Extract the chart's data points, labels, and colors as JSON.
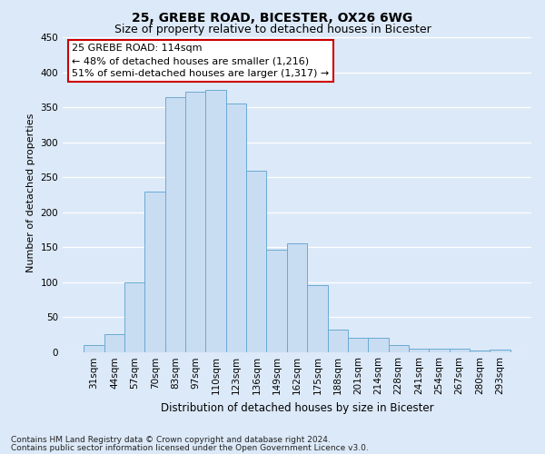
{
  "title1": "25, GREBE ROAD, BICESTER, OX26 6WG",
  "title2": "Size of property relative to detached houses in Bicester",
  "xlabel": "Distribution of detached houses by size in Bicester",
  "ylabel": "Number of detached properties",
  "categories": [
    "31sqm",
    "44sqm",
    "57sqm",
    "70sqm",
    "83sqm",
    "97sqm",
    "110sqm",
    "123sqm",
    "136sqm",
    "149sqm",
    "162sqm",
    "175sqm",
    "188sqm",
    "201sqm",
    "214sqm",
    "228sqm",
    "241sqm",
    "254sqm",
    "267sqm",
    "280sqm",
    "293sqm"
  ],
  "values": [
    10,
    26,
    100,
    230,
    365,
    373,
    375,
    355,
    260,
    146,
    155,
    95,
    32,
    20,
    20,
    10,
    5,
    5,
    5,
    2,
    3
  ],
  "bar_color": "#c9ddf2",
  "bar_edge_color": "#6aaad4",
  "annotation_line1": "25 GREBE ROAD: 114sqm",
  "annotation_line2": "← 48% of detached houses are smaller (1,216)",
  "annotation_line3": "51% of semi-detached houses are larger (1,317) →",
  "annotation_box_color": "#ffffff",
  "annotation_box_edge_color": "#cc0000",
  "ylim": [
    0,
    455
  ],
  "yticks": [
    0,
    50,
    100,
    150,
    200,
    250,
    300,
    350,
    400,
    450
  ],
  "footnote1": "Contains HM Land Registry data © Crown copyright and database right 2024.",
  "footnote2": "Contains public sector information licensed under the Open Government Licence v3.0.",
  "background_color": "#dce9f8",
  "plot_background_color": "#dce9f8",
  "grid_color": "#ffffff",
  "title1_fontsize": 10,
  "title2_fontsize": 9,
  "xlabel_fontsize": 8.5,
  "ylabel_fontsize": 8,
  "tick_fontsize": 7.5,
  "annotation_fontsize": 8,
  "footnote_fontsize": 6.5
}
